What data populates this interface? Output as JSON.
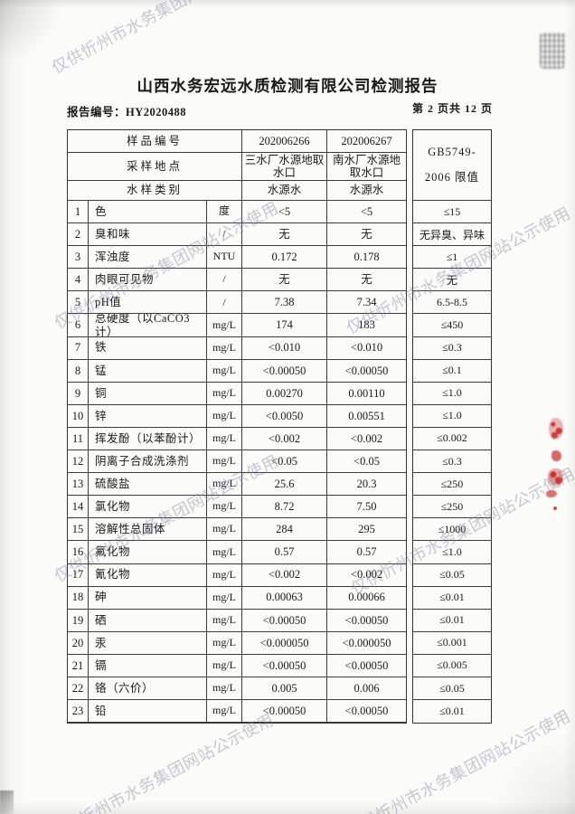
{
  "document": {
    "title": "山西水务宏远水质检测有限公司检测报告",
    "report_no_label": "报告编号：",
    "report_no": "HY2020488",
    "page_indicator": "第 2 页共 12 页"
  },
  "watermark": {
    "text": "仅供忻州市水务集团网站公示使用"
  },
  "table": {
    "header": {
      "sample_no_label": "样品编号",
      "sample_no_1": "202006266",
      "sample_no_2": "202006267",
      "location_label": "采样地点",
      "location_1": "三水厂水源地取水口",
      "location_2": "南水厂水源地取水口",
      "type_label": "水样类别",
      "type_1": "水源水",
      "type_2": "水源水",
      "limit_line1": "GB5749-",
      "limit_line2": "2006 限值"
    },
    "rows": [
      {
        "no": "1",
        "param": "色",
        "unit": "度",
        "v1": "<5",
        "v2": "<5",
        "limit": "≤15"
      },
      {
        "no": "2",
        "param": "臭和味",
        "unit": "/",
        "v1": "无",
        "v2": "无",
        "limit": "无异臭、异味"
      },
      {
        "no": "3",
        "param": "浑浊度",
        "unit": "NTU",
        "v1": "0.172",
        "v2": "0.178",
        "limit": "≤1"
      },
      {
        "no": "4",
        "param": "肉眼可见物",
        "unit": "/",
        "v1": "无",
        "v2": "无",
        "limit": "无"
      },
      {
        "no": "5",
        "param": "pH值",
        "unit": "/",
        "v1": "7.38",
        "v2": "7.34",
        "limit": "6.5-8.5"
      },
      {
        "no": "6",
        "param": "总硬度（以CaCO3计）",
        "unit": "mg/L",
        "v1": "174",
        "v2": "183",
        "limit": "≤450"
      },
      {
        "no": "7",
        "param": "铁",
        "unit": "mg/L",
        "v1": "<0.010",
        "v2": "<0.010",
        "limit": "≤0.3"
      },
      {
        "no": "8",
        "param": "锰",
        "unit": "mg/L",
        "v1": "<0.00050",
        "v2": "<0.00050",
        "limit": "≤0.1"
      },
      {
        "no": "9",
        "param": "铜",
        "unit": "mg/L",
        "v1": "0.00270",
        "v2": "0.00110",
        "limit": "≤1.0"
      },
      {
        "no": "10",
        "param": "锌",
        "unit": "mg/L",
        "v1": "<0.0050",
        "v2": "0.00551",
        "limit": "≤1.0"
      },
      {
        "no": "11",
        "param": "挥发酚（以苯酚计）",
        "unit": "mg/L",
        "v1": "<0.002",
        "v2": "<0.002",
        "limit": "≤0.002"
      },
      {
        "no": "12",
        "param": "阴离子合成洗涤剂",
        "unit": "mg/L",
        "v1": "<0.05",
        "v2": "<0.05",
        "limit": "≤0.3"
      },
      {
        "no": "13",
        "param": "硫酸盐",
        "unit": "mg/L",
        "v1": "25.6",
        "v2": "20.3",
        "limit": "≤250"
      },
      {
        "no": "14",
        "param": "氯化物",
        "unit": "mg/L",
        "v1": "8.72",
        "v2": "7.50",
        "limit": "≤250"
      },
      {
        "no": "15",
        "param": "溶解性总固体",
        "unit": "mg/L",
        "v1": "284",
        "v2": "295",
        "limit": "≤1000"
      },
      {
        "no": "16",
        "param": "氟化物",
        "unit": "mg/L",
        "v1": "0.57",
        "v2": "0.57",
        "limit": "≤1.0"
      },
      {
        "no": "17",
        "param": "氰化物",
        "unit": "mg/L",
        "v1": "<0.002",
        "v2": "<0.002",
        "limit": "≤0.05"
      },
      {
        "no": "18",
        "param": "砷",
        "unit": "mg/L",
        "v1": "0.00063",
        "v2": "0.00066",
        "limit": "≤0.01"
      },
      {
        "no": "19",
        "param": "硒",
        "unit": "mg/L",
        "v1": "<0.00050",
        "v2": "<0.00050",
        "limit": "≤0.01"
      },
      {
        "no": "20",
        "param": "汞",
        "unit": "mg/L",
        "v1": "<0.000050",
        "v2": "<0.000050",
        "limit": "≤0.001"
      },
      {
        "no": "21",
        "param": "镉",
        "unit": "mg/L",
        "v1": "<0.00050",
        "v2": "<0.00050",
        "limit": "≤0.005"
      },
      {
        "no": "22",
        "param": "铬（六价）",
        "unit": "mg/L",
        "v1": "0.005",
        "v2": "0.006",
        "limit": "≤0.05"
      },
      {
        "no": "23",
        "param": "铅",
        "unit": "mg/L",
        "v1": "<0.00050",
        "v2": "<0.00050",
        "limit": "≤0.01"
      }
    ]
  }
}
